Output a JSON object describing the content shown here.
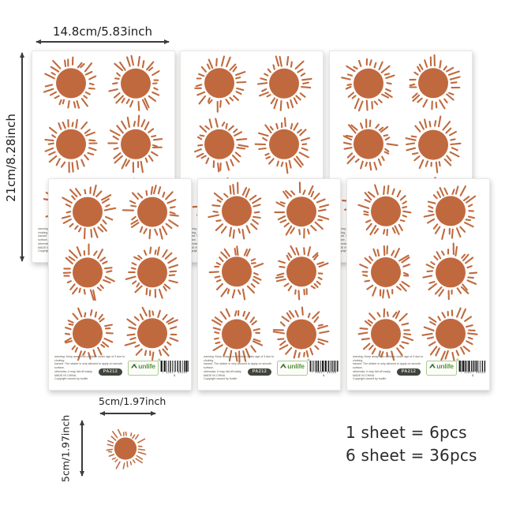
{
  "dimensions": {
    "sheet_width": "14.8cm/5.83inch",
    "sheet_height": "21cm/8.28inch",
    "sticker_width": "5cm/1.97inch",
    "sticker_height": "5cm/1.97inch"
  },
  "sheet": {
    "suns_per_sheet": 6,
    "warning_text": "warning: Keep away from children under age of 3 due to choking\nhazard. The sticker is only allowed to apply on smooth surface,\notherwise, it may fall off easily.\nMADE IN CHINA\nCopyright owned by funlife",
    "product_code": "PA212",
    "brand": {
      "name": "funlife",
      "display_text": "unlife",
      "registered_mark": "®",
      "tagline_dots": "·· ··· ·· ··· ··"
    },
    "barcode_digits": "7 42917 96194 9"
  },
  "pack_info": {
    "line1": "1 sheet = 6pcs",
    "line2": "6 sheet = 36pcs"
  },
  "colors": {
    "sun": "#c1693e",
    "ray": "#bf6a3e",
    "barcode_bar": "#151515",
    "roof_green": "#2f6b2f",
    "roof_accent": "#d07030"
  }
}
